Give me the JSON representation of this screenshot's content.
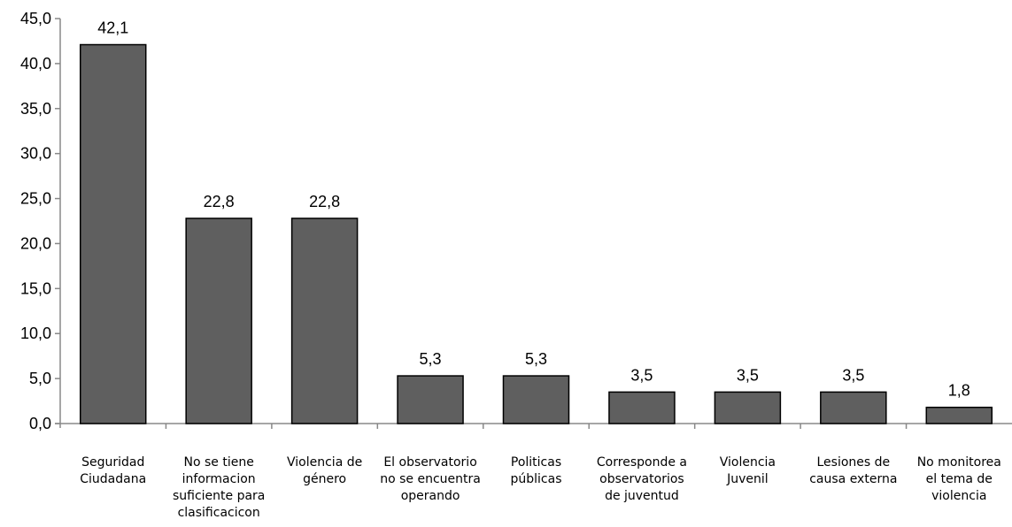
{
  "chart_data": {
    "type": "bar",
    "categories": [
      [
        "Seguridad",
        "Ciudadana"
      ],
      [
        "No se tiene",
        "informacion",
        "suficiente para",
        "clasificacicon"
      ],
      [
        "Violencia de",
        "género"
      ],
      [
        "El observatorio",
        "no se encuentra",
        "operando"
      ],
      [
        "Politicas",
        "públicas"
      ],
      [
        "Corresponde a",
        "observatorios",
        "de juventud"
      ],
      [
        "Violencia",
        "Juvenil"
      ],
      [
        "Lesiones de",
        "causa externa"
      ],
      [
        "No monitorea",
        "el tema de",
        "violencia"
      ]
    ],
    "values": [
      42.1,
      22.8,
      22.8,
      5.3,
      5.3,
      3.5,
      3.5,
      3.5,
      1.8
    ],
    "value_labels": [
      "42,1",
      "22,8",
      "22,8",
      "5,3",
      "5,3",
      "3,5",
      "3,5",
      "3,5",
      "1,8"
    ],
    "yticks": [
      "0,0",
      "5,0",
      "10,0",
      "15,0",
      "20,0",
      "25,0",
      "30,0",
      "35,0",
      "40,0",
      "45,0"
    ],
    "ylim": [
      0,
      45
    ],
    "title": "",
    "xlabel": "",
    "ylabel": "",
    "grid": false,
    "colors": {
      "bar": "#5f5f5f",
      "bar_edge": "#000000",
      "axis": "#888888"
    }
  }
}
